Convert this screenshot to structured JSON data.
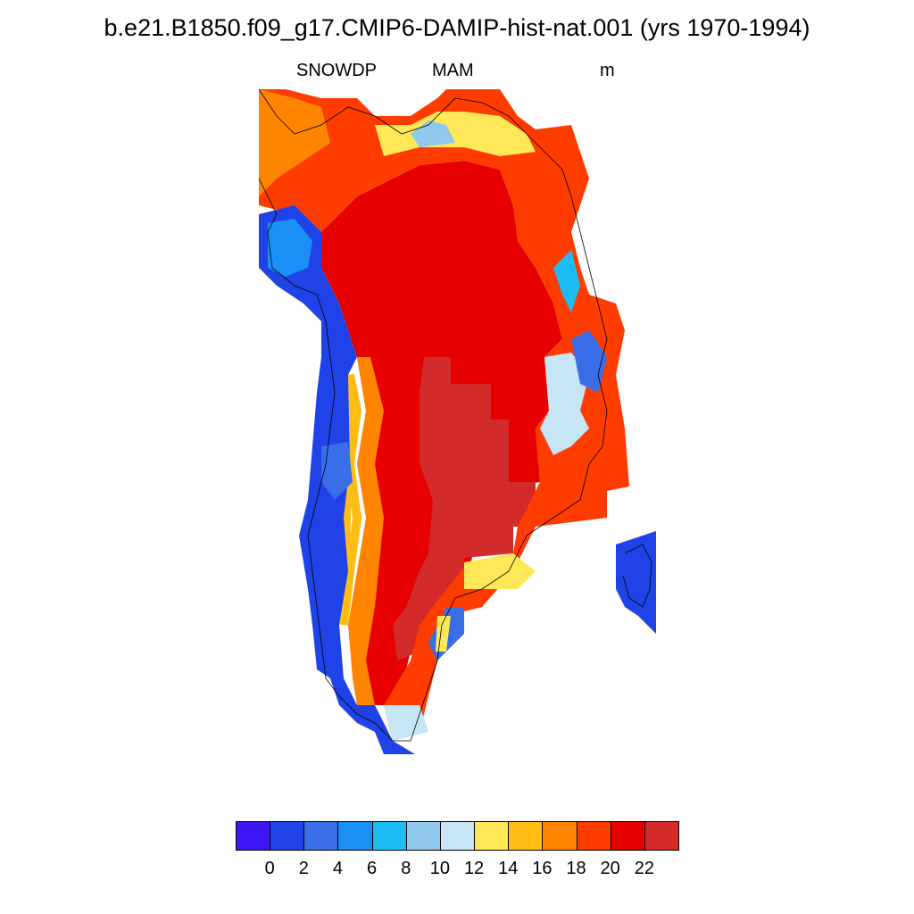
{
  "title": "b.e21.B1850.f09_g17.CMIP6-DAMIP-hist-nat.001 (yrs 1970-1994)",
  "variable": "SNOWDP",
  "season": "MAM",
  "units": "m",
  "colorbar": {
    "colors": [
      "#4015f5",
      "#2043e8",
      "#396ee8",
      "#1a8ff5",
      "#1ebcf5",
      "#90c8ee",
      "#c6e5f5",
      "#ffe858",
      "#ffbd14",
      "#ff8500",
      "#ff3c00",
      "#e60000",
      "#d32a2a"
    ],
    "labels": [
      "0",
      "2",
      "4",
      "6",
      "8",
      "10",
      "12",
      "14",
      "16",
      "18",
      "20",
      "22"
    ]
  }
}
